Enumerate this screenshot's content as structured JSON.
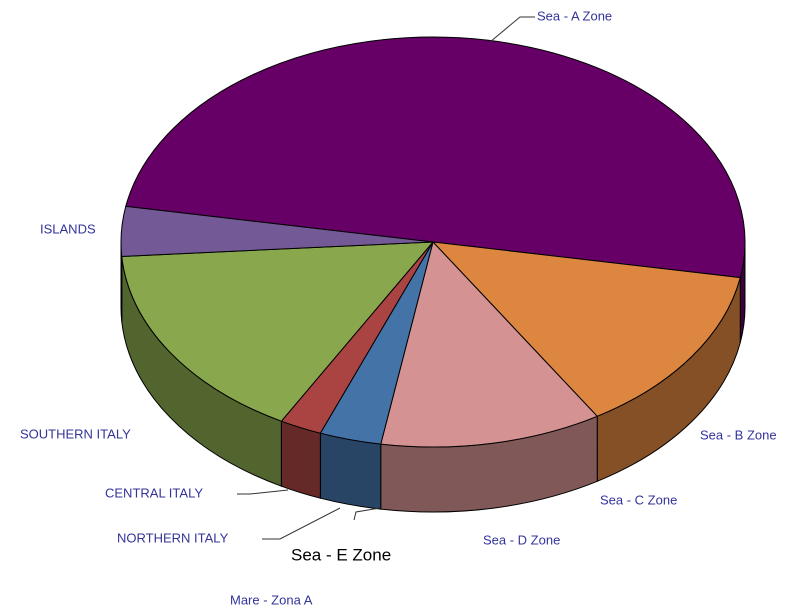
{
  "chart_data": {
    "type": "pie",
    "categories": [
      "Sea - A Zone",
      "Sea - B Zone",
      "Sea - C Zone",
      "Sea - D Zone",
      "Sea - E Zone",
      "NORTHERN ITALY",
      "CENTRAL ITALY",
      "SOUTHERN ITALY",
      "ISLANDS"
    ],
    "values": [
      50,
      13.4,
      0,
      11.5,
      0,
      3.2,
      2.2,
      15.8,
      3.9
    ],
    "colors": [
      "#660066",
      "#dd8640",
      "#cc9900",
      "#d59292",
      "#336699",
      "#4473a8",
      "#a94442",
      "#89a84e",
      "#735a96"
    ],
    "annotation": "Mare - Zona A"
  }
}
